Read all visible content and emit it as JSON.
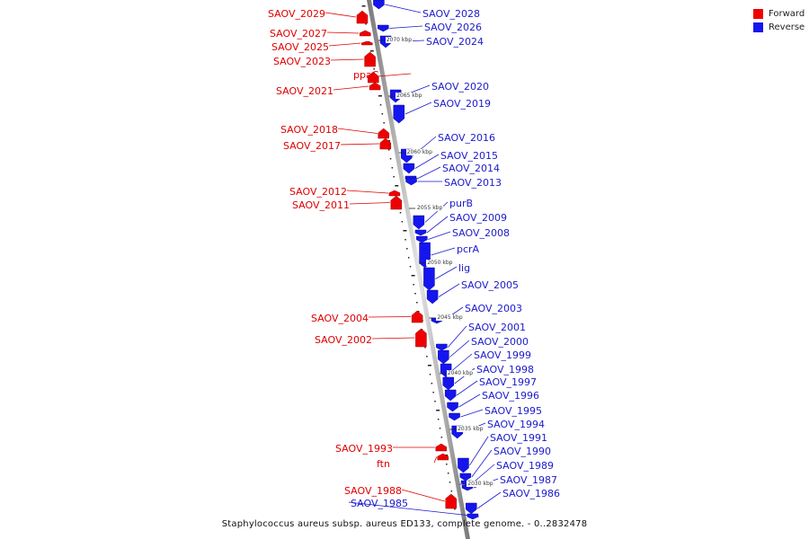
{
  "legend": {
    "items": [
      {
        "label": "Forward",
        "color": "#ee0000"
      },
      {
        "label": "Reverse",
        "color": "#1515ee"
      }
    ]
  },
  "caption": "Staphylococcus aureus subsp. aureus ED133, complete genome. - 0..2832478",
  "forward_genes": [
    {
      "label": "SAOV_2029"
    },
    {
      "label": "SAOV_2027"
    },
    {
      "label": "SAOV_2025"
    },
    {
      "label": "SAOV_2023"
    },
    {
      "label": "ppaC"
    },
    {
      "label": "SAOV_2021"
    },
    {
      "label": "SAOV_2018"
    },
    {
      "label": "SAOV_2017"
    },
    {
      "label": "SAOV_2012"
    },
    {
      "label": "SAOV_2011"
    },
    {
      "label": "SAOV_2004"
    },
    {
      "label": "SAOV_2002"
    },
    {
      "label": "SAOV_1993"
    },
    {
      "label": "ftn"
    },
    {
      "label": "SAOV_1988"
    }
  ],
  "reverse_genes": [
    {
      "label": "SAOV_2028"
    },
    {
      "label": "SAOV_2026"
    },
    {
      "label": "SAOV_2024"
    },
    {
      "label": "SAOV_2020"
    },
    {
      "label": "SAOV_2019"
    },
    {
      "label": "SAOV_2016"
    },
    {
      "label": "SAOV_2015"
    },
    {
      "label": "SAOV_2014"
    },
    {
      "label": "SAOV_2013"
    },
    {
      "label": "purB"
    },
    {
      "label": "SAOV_2009"
    },
    {
      "label": "SAOV_2008"
    },
    {
      "label": "pcrA"
    },
    {
      "label": "lig"
    },
    {
      "label": "SAOV_2005"
    },
    {
      "label": "SAOV_2003"
    },
    {
      "label": "SAOV_2001"
    },
    {
      "label": "SAOV_2000"
    },
    {
      "label": "SAOV_1999"
    },
    {
      "label": "SAOV_1998"
    },
    {
      "label": "SAOV_1997"
    },
    {
      "label": "SAOV_1996"
    },
    {
      "label": "SAOV_1995"
    },
    {
      "label": "SAOV_1994"
    },
    {
      "label": "SAOV_1991"
    },
    {
      "label": "SAOV_1990"
    },
    {
      "label": "SAOV_1989"
    },
    {
      "label": "SAOV_1987"
    },
    {
      "label": "SAOV_1986"
    },
    {
      "label": "SAOV_1985"
    }
  ],
  "ticks": [
    {
      "label": "2070 kbp"
    },
    {
      "label": "2065 kbp"
    },
    {
      "label": "2060 kbp"
    },
    {
      "label": "2055 kbp"
    },
    {
      "label": "2050 kbp"
    },
    {
      "label": "2045 kbp"
    },
    {
      "label": "2040 kbp"
    },
    {
      "label": "2035 kbp"
    },
    {
      "label": "2030 kbp"
    }
  ]
}
